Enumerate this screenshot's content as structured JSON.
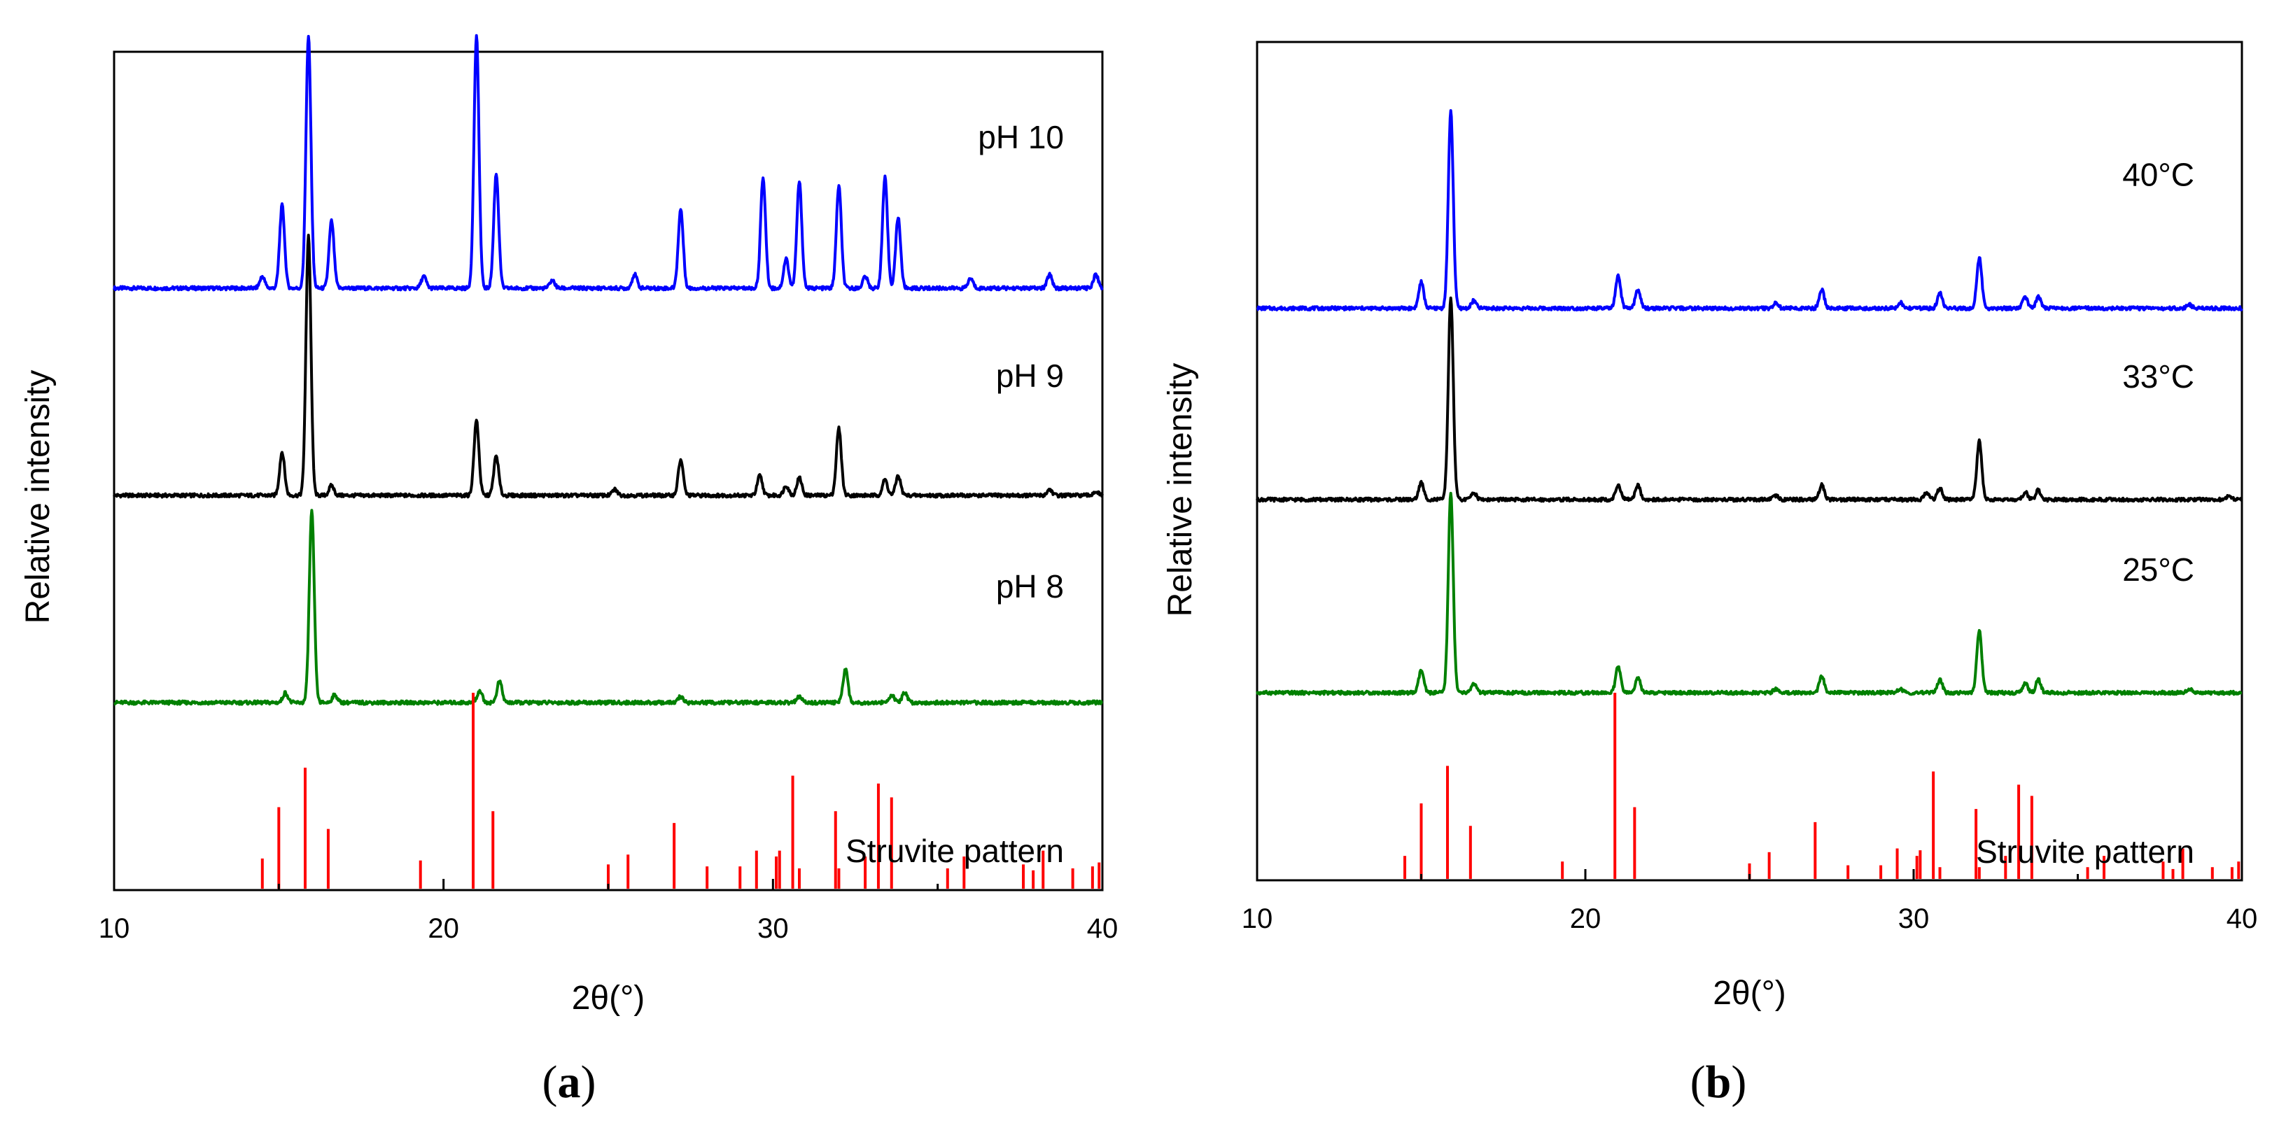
{
  "chart_data": [
    {
      "type": "line",
      "panel_label": "(a)",
      "panel_letter": "a",
      "xlabel": "2θ(°)",
      "ylabel": "Relative intensity",
      "xlim": [
        10,
        40
      ],
      "xticks": [
        10,
        20,
        30,
        40
      ],
      "series": [
        {
          "name": "pH 10",
          "color": "#0000ff",
          "offset": 3.05,
          "peaks": [
            [
              14.5,
              0.06
            ],
            [
              15.1,
              0.42
            ],
            [
              15.9,
              1.28
            ],
            [
              16.6,
              0.34
            ],
            [
              19.4,
              0.06
            ],
            [
              21.0,
              1.28
            ],
            [
              21.6,
              0.58
            ],
            [
              23.3,
              0.04
            ],
            [
              25.8,
              0.07
            ],
            [
              27.2,
              0.4
            ],
            [
              29.7,
              0.56
            ],
            [
              30.4,
              0.15
            ],
            [
              30.8,
              0.54
            ],
            [
              32.0,
              0.52
            ],
            [
              32.8,
              0.06
            ],
            [
              33.4,
              0.56
            ],
            [
              33.8,
              0.36
            ],
            [
              36.0,
              0.05
            ],
            [
              38.4,
              0.07
            ],
            [
              39.8,
              0.07
            ]
          ]
        },
        {
          "name": "pH 9",
          "color": "#000000",
          "offset": 2.0,
          "peaks": [
            [
              15.1,
              0.22
            ],
            [
              15.9,
              1.32
            ],
            [
              16.6,
              0.05
            ],
            [
              21.0,
              0.38
            ],
            [
              21.6,
              0.2
            ],
            [
              25.2,
              0.03
            ],
            [
              27.2,
              0.18
            ],
            [
              29.6,
              0.1
            ],
            [
              30.4,
              0.05
            ],
            [
              30.8,
              0.09
            ],
            [
              32.0,
              0.34
            ],
            [
              33.4,
              0.08
            ],
            [
              33.8,
              0.1
            ],
            [
              38.4,
              0.03
            ],
            [
              39.8,
              0.02
            ]
          ]
        },
        {
          "name": "pH 8",
          "color": "#008000",
          "offset": 0.95,
          "peaks": [
            [
              15.2,
              0.05
            ],
            [
              16.0,
              0.97
            ],
            [
              16.7,
              0.04
            ],
            [
              21.1,
              0.06
            ],
            [
              21.7,
              0.11
            ],
            [
              27.2,
              0.03
            ],
            [
              30.8,
              0.03
            ],
            [
              32.2,
              0.17
            ],
            [
              33.6,
              0.04
            ],
            [
              34.0,
              0.05
            ]
          ]
        },
        {
          "name": "Struvite pattern",
          "color": "#ff0000",
          "offset": 0.0,
          "sticks": [
            [
              14.5,
              0.16
            ],
            [
              15.0,
              0.42
            ],
            [
              15.8,
              0.62
            ],
            [
              16.5,
              0.31
            ],
            [
              19.3,
              0.15
            ],
            [
              20.9,
              1.0
            ],
            [
              21.5,
              0.4
            ],
            [
              25.0,
              0.13
            ],
            [
              25.6,
              0.18
            ],
            [
              27.0,
              0.34
            ],
            [
              28.0,
              0.12
            ],
            [
              29.0,
              0.12
            ],
            [
              29.5,
              0.2
            ],
            [
              30.1,
              0.17
            ],
            [
              30.2,
              0.2
            ],
            [
              30.6,
              0.58
            ],
            [
              30.8,
              0.11
            ],
            [
              31.9,
              0.4
            ],
            [
              32.0,
              0.11
            ],
            [
              32.8,
              0.17
            ],
            [
              33.2,
              0.54
            ],
            [
              33.6,
              0.47
            ],
            [
              35.3,
              0.11
            ],
            [
              35.8,
              0.17
            ],
            [
              37.6,
              0.13
            ],
            [
              37.9,
              0.1
            ],
            [
              38.2,
              0.2
            ],
            [
              39.1,
              0.11
            ],
            [
              39.7,
              0.12
            ],
            [
              39.9,
              0.14
            ]
          ]
        }
      ]
    },
    {
      "type": "line",
      "panel_label": "(b)",
      "panel_letter": "b",
      "xlabel": "2θ(°)",
      "ylabel": "Relative intensity",
      "xlim": [
        10,
        40
      ],
      "xticks": [
        10,
        20,
        30,
        40
      ],
      "series": [
        {
          "name": "40°C",
          "color": "#0000ff",
          "offset": 3.05,
          "peaks": [
            [
              15.0,
              0.14
            ],
            [
              15.9,
              1.05
            ],
            [
              16.6,
              0.04
            ],
            [
              21.0,
              0.17
            ],
            [
              21.6,
              0.1
            ],
            [
              25.8,
              0.03
            ],
            [
              27.2,
              0.1
            ],
            [
              29.6,
              0.03
            ],
            [
              30.8,
              0.08
            ],
            [
              32.0,
              0.27
            ],
            [
              33.4,
              0.06
            ],
            [
              33.8,
              0.06
            ],
            [
              38.4,
              0.02
            ]
          ]
        },
        {
          "name": "33°C",
          "color": "#000000",
          "offset": 2.03,
          "peaks": [
            [
              15.0,
              0.09
            ],
            [
              15.9,
              1.08
            ],
            [
              16.6,
              0.04
            ],
            [
              21.0,
              0.08
            ],
            [
              21.6,
              0.08
            ],
            [
              25.8,
              0.02
            ],
            [
              27.2,
              0.08
            ],
            [
              30.4,
              0.04
            ],
            [
              30.8,
              0.06
            ],
            [
              32.0,
              0.31
            ],
            [
              33.4,
              0.04
            ],
            [
              33.8,
              0.05
            ],
            [
              39.6,
              0.02
            ]
          ]
        },
        {
          "name": "25°C",
          "color": "#008000",
          "offset": 1.0,
          "peaks": [
            [
              15.0,
              0.12
            ],
            [
              15.9,
              1.07
            ],
            [
              16.6,
              0.05
            ],
            [
              21.0,
              0.14
            ],
            [
              21.6,
              0.08
            ],
            [
              25.8,
              0.02
            ],
            [
              27.2,
              0.09
            ],
            [
              29.6,
              0.02
            ],
            [
              30.8,
              0.07
            ],
            [
              32.0,
              0.33
            ],
            [
              33.4,
              0.05
            ],
            [
              33.8,
              0.07
            ],
            [
              38.4,
              0.02
            ]
          ]
        },
        {
          "name": "Struvite pattern",
          "color": "#ff0000",
          "offset": 0.0,
          "sticks": [
            [
              14.5,
              0.13
            ],
            [
              15.0,
              0.41
            ],
            [
              15.8,
              0.61
            ],
            [
              16.5,
              0.29
            ],
            [
              19.3,
              0.1
            ],
            [
              20.9,
              1.0
            ],
            [
              21.5,
              0.39
            ],
            [
              25.0,
              0.09
            ],
            [
              25.6,
              0.15
            ],
            [
              27.0,
              0.31
            ],
            [
              28.0,
              0.08
            ],
            [
              29.0,
              0.08
            ],
            [
              29.5,
              0.17
            ],
            [
              30.1,
              0.13
            ],
            [
              30.2,
              0.16
            ],
            [
              30.6,
              0.58
            ],
            [
              30.8,
              0.07
            ],
            [
              31.9,
              0.38
            ],
            [
              32.0,
              0.07
            ],
            [
              32.8,
              0.13
            ],
            [
              33.2,
              0.51
            ],
            [
              33.6,
              0.45
            ],
            [
              35.3,
              0.07
            ],
            [
              35.8,
              0.13
            ],
            [
              37.6,
              0.1
            ],
            [
              37.9,
              0.06
            ],
            [
              38.2,
              0.17
            ],
            [
              39.1,
              0.07
            ],
            [
              39.7,
              0.07
            ],
            [
              39.9,
              0.1
            ]
          ]
        }
      ]
    }
  ]
}
